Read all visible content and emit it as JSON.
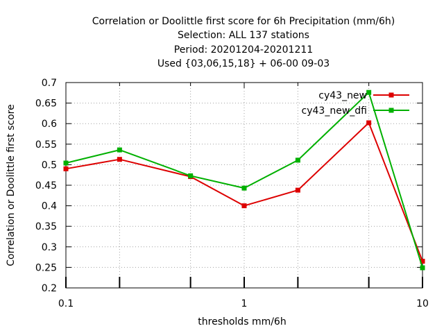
{
  "chart_data": {
    "type": "line",
    "title_lines": [
      "Correlation or Doolittle first score  for 6h Precipitation (mm/6h)",
      "Selection: ALL    137 stations",
      "Period: 20201204-20201211",
      "Used {03,06,15,18} + 06-00 09-03"
    ],
    "xlabel": "thresholds mm/6h",
    "ylabel": "Correlation or Doolittle first score",
    "x_scale": "log",
    "xlim": [
      0.1,
      10
    ],
    "ylim": [
      0.2,
      0.7
    ],
    "x_ticks": [
      {
        "value": 0.1,
        "label": "0.1"
      },
      {
        "value": 1,
        "label": "1"
      },
      {
        "value": 10,
        "label": "10"
      }
    ],
    "minor_x_ticks": [
      0.2,
      0.5,
      2,
      5
    ],
    "y_ticks": [
      {
        "value": 0.2,
        "label": "0.2"
      },
      {
        "value": 0.25,
        "label": "0.25"
      },
      {
        "value": 0.3,
        "label": "0.3"
      },
      {
        "value": 0.35,
        "label": "0.35"
      },
      {
        "value": 0.4,
        "label": "0.4"
      },
      {
        "value": 0.45,
        "label": "0.45"
      },
      {
        "value": 0.5,
        "label": "0.5"
      },
      {
        "value": 0.55,
        "label": "0.55"
      },
      {
        "value": 0.6,
        "label": "0.6"
      },
      {
        "value": 0.65,
        "label": "0.65"
      },
      {
        "value": 0.7,
        "label": "0.7"
      }
    ],
    "grid": true,
    "legend_position": "top-right",
    "x": [
      0.1,
      0.2,
      0.5,
      1,
      2,
      5,
      10
    ],
    "series": [
      {
        "name": "cy43_new",
        "color": "#dd0000",
        "values": [
          0.49,
          0.513,
          0.471,
          0.4,
          0.438,
          0.602,
          0.265
        ]
      },
      {
        "name": "cy43_new_dfi",
        "color": "#00b000",
        "values": [
          0.504,
          0.536,
          0.473,
          0.443,
          0.511,
          0.676,
          0.249
        ]
      }
    ]
  }
}
